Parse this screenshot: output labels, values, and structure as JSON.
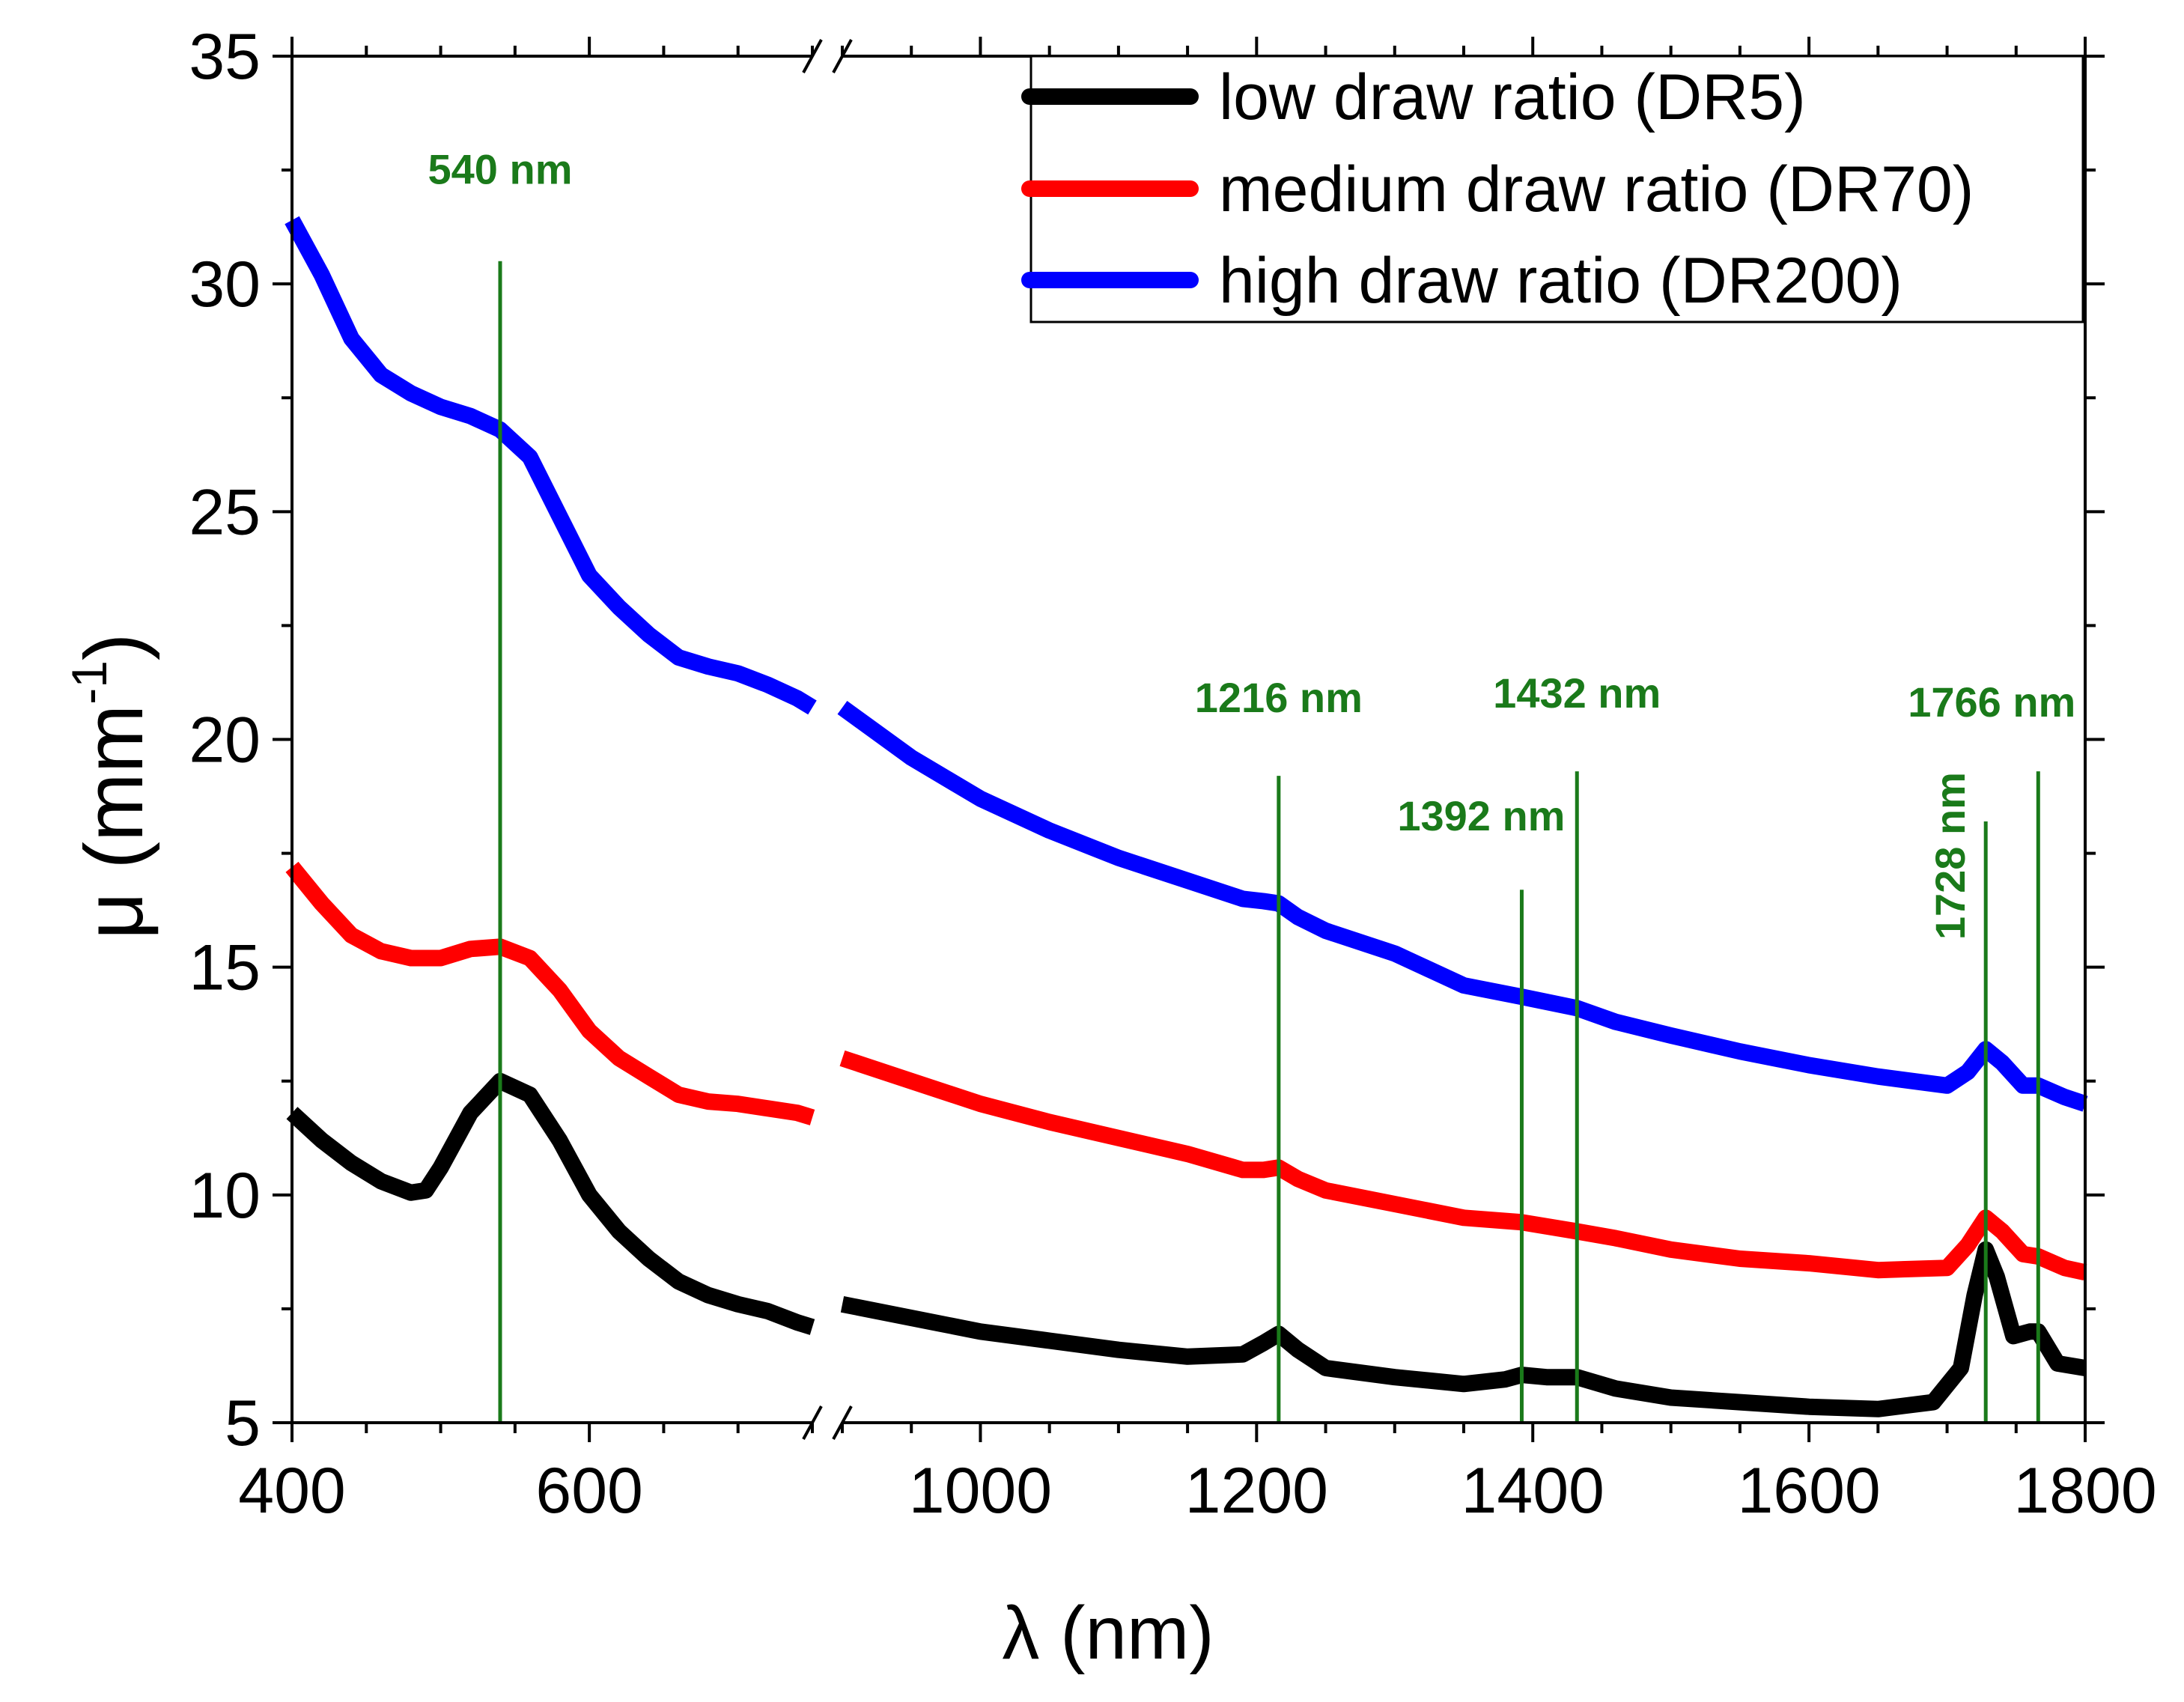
{
  "chart_data": {
    "type": "line",
    "xlabel": "λ (nm)",
    "ylabel_main": "μ (mm",
    "ylabel_sup": "-1",
    "ylabel_close": ")",
    "ylim": [
      5,
      35
    ],
    "y_ticks": [
      5,
      10,
      15,
      20,
      25,
      30,
      35
    ],
    "y_tick_labels": [
      "5",
      "10",
      "15",
      "20",
      "25",
      "30",
      "35"
    ],
    "x_break": {
      "left_segment": [
        400,
        750
      ],
      "right_segment": [
        900,
        1800
      ]
    },
    "x_ticks": [
      400,
      600,
      1000,
      1200,
      1400,
      1600,
      1800
    ],
    "x_tick_labels": [
      "400",
      "600",
      "1000",
      "1200",
      "1400",
      "1600",
      "1800"
    ],
    "legend": {
      "position": "top-right"
    },
    "series": [
      {
        "name": "low draw ratio (DR5)",
        "color": "#000000",
        "segments": [
          [
            [
              400,
              11.8
            ],
            [
              420,
              11.2
            ],
            [
              440,
              10.7
            ],
            [
              460,
              10.3
            ],
            [
              480,
              10.05
            ],
            [
              490,
              10.1
            ],
            [
              500,
              10.6
            ],
            [
              520,
              11.8
            ],
            [
              540,
              12.5
            ],
            [
              560,
              12.2
            ],
            [
              580,
              11.2
            ],
            [
              600,
              10.0
            ],
            [
              620,
              9.2
            ],
            [
              640,
              8.6
            ],
            [
              660,
              8.1
            ],
            [
              680,
              7.8
            ],
            [
              700,
              7.6
            ],
            [
              720,
              7.45
            ],
            [
              740,
              7.2
            ],
            [
              750,
              7.1
            ]
          ],
          [
            [
              900,
              7.6
            ],
            [
              950,
              7.3
            ],
            [
              1000,
              7.0
            ],
            [
              1050,
              6.8
            ],
            [
              1100,
              6.6
            ],
            [
              1150,
              6.45
            ],
            [
              1190,
              6.5
            ],
            [
              1205,
              6.75
            ],
            [
              1216,
              6.95
            ],
            [
              1230,
              6.6
            ],
            [
              1250,
              6.2
            ],
            [
              1300,
              6.0
            ],
            [
              1350,
              5.85
            ],
            [
              1380,
              5.95
            ],
            [
              1392,
              6.05
            ],
            [
              1410,
              6.0
            ],
            [
              1432,
              6.0
            ],
            [
              1460,
              5.75
            ],
            [
              1500,
              5.55
            ],
            [
              1550,
              5.45
            ],
            [
              1600,
              5.35
            ],
            [
              1650,
              5.3
            ],
            [
              1690,
              5.45
            ],
            [
              1710,
              6.2
            ],
            [
              1720,
              7.8
            ],
            [
              1728,
              8.8
            ],
            [
              1736,
              8.2
            ],
            [
              1748,
              6.9
            ],
            [
              1760,
              7.0
            ],
            [
              1766,
              7.0
            ],
            [
              1780,
              6.3
            ],
            [
              1800,
              6.2
            ]
          ]
        ]
      },
      {
        "name": "medium draw ratio (DR70)",
        "color": "#ff0000",
        "segments": [
          [
            [
              400,
              17.2
            ],
            [
              420,
              16.4
            ],
            [
              440,
              15.7
            ],
            [
              460,
              15.35
            ],
            [
              480,
              15.2
            ],
            [
              500,
              15.2
            ],
            [
              520,
              15.4
            ],
            [
              540,
              15.45
            ],
            [
              560,
              15.2
            ],
            [
              580,
              14.5
            ],
            [
              600,
              13.6
            ],
            [
              620,
              13.0
            ],
            [
              640,
              12.6
            ],
            [
              660,
              12.2
            ],
            [
              680,
              12.05
            ],
            [
              700,
              12.0
            ],
            [
              720,
              11.9
            ],
            [
              740,
              11.8
            ],
            [
              750,
              11.7
            ]
          ],
          [
            [
              900,
              13.0
            ],
            [
              950,
              12.5
            ],
            [
              1000,
              12.0
            ],
            [
              1050,
              11.6
            ],
            [
              1100,
              11.25
            ],
            [
              1150,
              10.9
            ],
            [
              1190,
              10.55
            ],
            [
              1205,
              10.55
            ],
            [
              1216,
              10.6
            ],
            [
              1230,
              10.35
            ],
            [
              1250,
              10.1
            ],
            [
              1300,
              9.8
            ],
            [
              1350,
              9.5
            ],
            [
              1392,
              9.4
            ],
            [
              1432,
              9.2
            ],
            [
              1460,
              9.05
            ],
            [
              1500,
              8.8
            ],
            [
              1550,
              8.6
            ],
            [
              1600,
              8.5
            ],
            [
              1650,
              8.35
            ],
            [
              1700,
              8.4
            ],
            [
              1715,
              8.9
            ],
            [
              1728,
              9.5
            ],
            [
              1740,
              9.2
            ],
            [
              1755,
              8.7
            ],
            [
              1766,
              8.65
            ],
            [
              1785,
              8.4
            ],
            [
              1800,
              8.3
            ]
          ]
        ]
      },
      {
        "name": "high draw ratio (DR200)",
        "color": "#0000ff",
        "segments": [
          [
            [
              400,
              31.4
            ],
            [
              420,
              30.2
            ],
            [
              440,
              28.8
            ],
            [
              460,
              28.0
            ],
            [
              480,
              27.6
            ],
            [
              500,
              27.3
            ],
            [
              520,
              27.1
            ],
            [
              540,
              26.8
            ],
            [
              560,
              26.2
            ],
            [
              580,
              24.9
            ],
            [
              600,
              23.6
            ],
            [
              620,
              22.9
            ],
            [
              640,
              22.3
            ],
            [
              660,
              21.8
            ],
            [
              680,
              21.6
            ],
            [
              700,
              21.45
            ],
            [
              720,
              21.2
            ],
            [
              740,
              20.9
            ],
            [
              750,
              20.7
            ]
          ],
          [
            [
              900,
              20.7
            ],
            [
              950,
              19.6
            ],
            [
              1000,
              18.7
            ],
            [
              1050,
              18.0
            ],
            [
              1100,
              17.4
            ],
            [
              1150,
              16.9
            ],
            [
              1190,
              16.5
            ],
            [
              1205,
              16.45
            ],
            [
              1216,
              16.4
            ],
            [
              1230,
              16.1
            ],
            [
              1250,
              15.8
            ],
            [
              1300,
              15.3
            ],
            [
              1350,
              14.6
            ],
            [
              1392,
              14.35
            ],
            [
              1432,
              14.1
            ],
            [
              1460,
              13.8
            ],
            [
              1500,
              13.5
            ],
            [
              1550,
              13.15
            ],
            [
              1600,
              12.85
            ],
            [
              1650,
              12.6
            ],
            [
              1700,
              12.4
            ],
            [
              1715,
              12.7
            ],
            [
              1728,
              13.2
            ],
            [
              1740,
              12.9
            ],
            [
              1755,
              12.4
            ],
            [
              1766,
              12.4
            ],
            [
              1785,
              12.15
            ],
            [
              1800,
              12.0
            ]
          ]
        ]
      }
    ],
    "annotations": [
      {
        "x": 540,
        "label": "540 nm",
        "top": 30.5,
        "orientation": "horizontal",
        "label_y": 32.2
      },
      {
        "x": 1216,
        "label": "1216 nm",
        "top": 19.2,
        "orientation": "horizontal",
        "label_y": 20.6
      },
      {
        "x": 1392,
        "label": "1392 nm",
        "top": 16.7,
        "orientation": "horizontal",
        "label_y": 18.0
      },
      {
        "x": 1432,
        "label": "1432 nm",
        "top": 19.3,
        "orientation": "horizontal",
        "label_y": 20.7
      },
      {
        "x": 1728,
        "label": "1728 nm",
        "top": 18.2,
        "orientation": "vertical",
        "label_y": 15.6
      },
      {
        "x": 1766,
        "label": "1766 nm",
        "top": 19.3,
        "orientation": "horizontal",
        "label_y": 20.5
      }
    ]
  }
}
